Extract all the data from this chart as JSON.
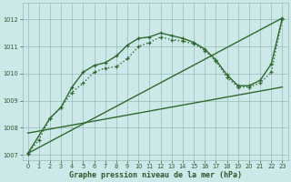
{
  "background_color": "#cce8e8",
  "grid_color": "#99bbbb",
  "text_color": "#2d5a2d",
  "line_color": "#2d6b2d",
  "xlim_min": -0.5,
  "xlim_max": 23.5,
  "ylim_min": 1006.8,
  "ylim_max": 1012.6,
  "yticks": [
    1007,
    1008,
    1009,
    1010,
    1011,
    1012
  ],
  "xticks": [
    0,
    1,
    2,
    3,
    4,
    5,
    6,
    7,
    8,
    9,
    10,
    11,
    12,
    13,
    14,
    15,
    16,
    17,
    18,
    19,
    20,
    21,
    22,
    23
  ],
  "xlabel": "Graphe pression niveau de la mer (hPa)",
  "series": [
    {
      "x": [
        0,
        1,
        2,
        3,
        4,
        5,
        6,
        7,
        8,
        9,
        10,
        11,
        12,
        13,
        14,
        15,
        16,
        17,
        18,
        19,
        20,
        21,
        22,
        23
      ],
      "y": [
        1007.05,
        1007.55,
        1008.35,
        1008.75,
        1009.3,
        1009.65,
        1010.05,
        1010.2,
        1010.25,
        1010.55,
        1011.0,
        1011.15,
        1011.35,
        1011.25,
        1011.2,
        1011.1,
        1010.85,
        1010.45,
        1009.85,
        1009.5,
        1009.5,
        1009.65,
        1010.05,
        1012.0
      ],
      "style": "dotted_marker",
      "linewidth": 1.0,
      "markersize": 3.5
    },
    {
      "x": [
        0,
        2,
        3,
        4,
        5,
        6,
        7,
        8,
        9,
        10,
        11,
        12,
        13,
        14,
        15,
        16,
        17,
        18,
        19,
        20,
        21,
        22,
        23
      ],
      "y": [
        1007.05,
        1008.35,
        1008.75,
        1009.5,
        1010.05,
        1010.3,
        1010.4,
        1010.65,
        1011.05,
        1011.3,
        1011.35,
        1011.5,
        1011.4,
        1011.3,
        1011.15,
        1010.9,
        1010.5,
        1009.95,
        1009.55,
        1009.55,
        1009.75,
        1010.35,
        1012.05
      ],
      "style": "solid_marker",
      "linewidth": 1.0,
      "markersize": 3.5
    },
    {
      "x": [
        0,
        23
      ],
      "y": [
        1007.05,
        1012.05
      ],
      "style": "solid_plain",
      "linewidth": 1.0
    },
    {
      "x": [
        0,
        23
      ],
      "y": [
        1007.8,
        1009.5
      ],
      "style": "solid_plain",
      "linewidth": 1.0
    }
  ]
}
